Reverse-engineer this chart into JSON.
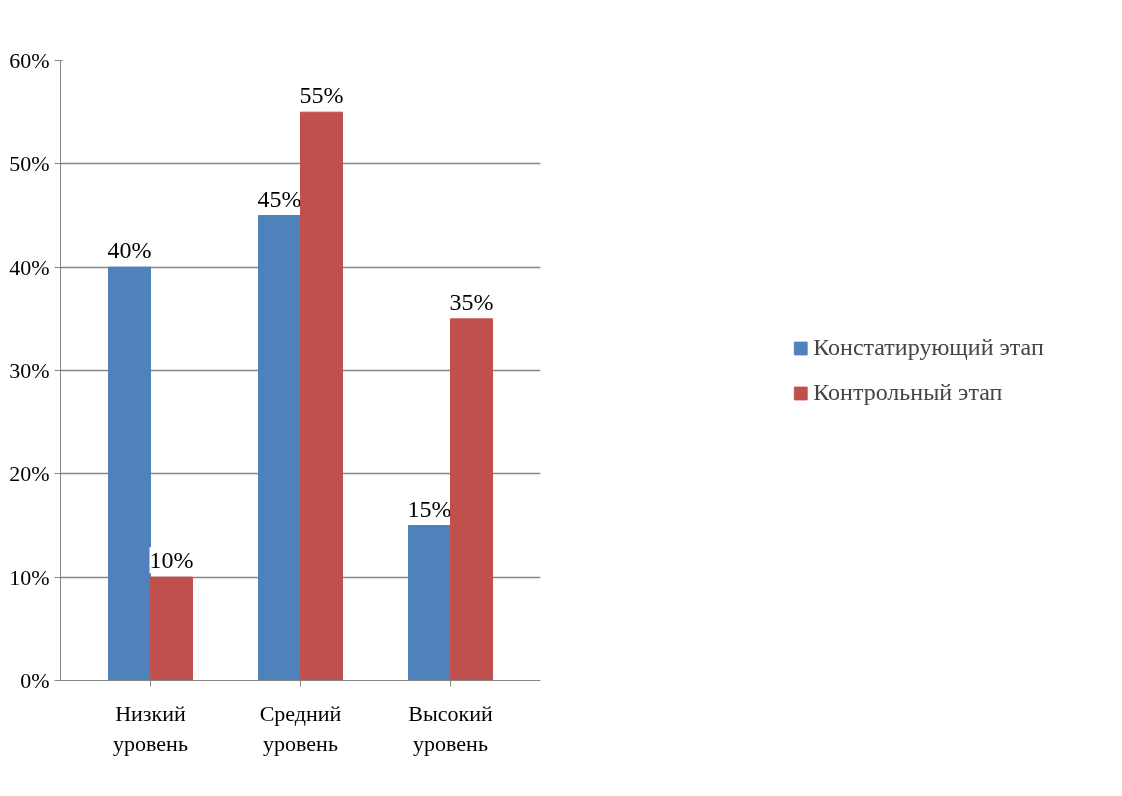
{
  "chart_data": {
    "type": "bar",
    "categories": [
      "Низкий уровень",
      "Средний уровень",
      "Высокий уровень"
    ],
    "series": [
      {
        "name": "Констатирующий этап",
        "color": "#4f81bd",
        "values": [
          40,
          45,
          15
        ],
        "value_labels": [
          "40%",
          "45%",
          "15%"
        ]
      },
      {
        "name": "Контрольный этап",
        "color": "#c0504d",
        "values": [
          10,
          55,
          35
        ],
        "value_labels": [
          "10%",
          "55%",
          "35%"
        ]
      }
    ],
    "ylim": [
      0,
      60
    ],
    "yticks": [
      {
        "value": 0,
        "label": "0%"
      },
      {
        "value": 10,
        "label": "10%"
      },
      {
        "value": 20,
        "label": "20%"
      },
      {
        "value": 30,
        "label": "30%"
      },
      {
        "value": 40,
        "label": "40%"
      },
      {
        "value": 50,
        "label": "50%"
      },
      {
        "value": 60,
        "label": "60%"
      }
    ],
    "grid": "y",
    "legend": "right"
  }
}
